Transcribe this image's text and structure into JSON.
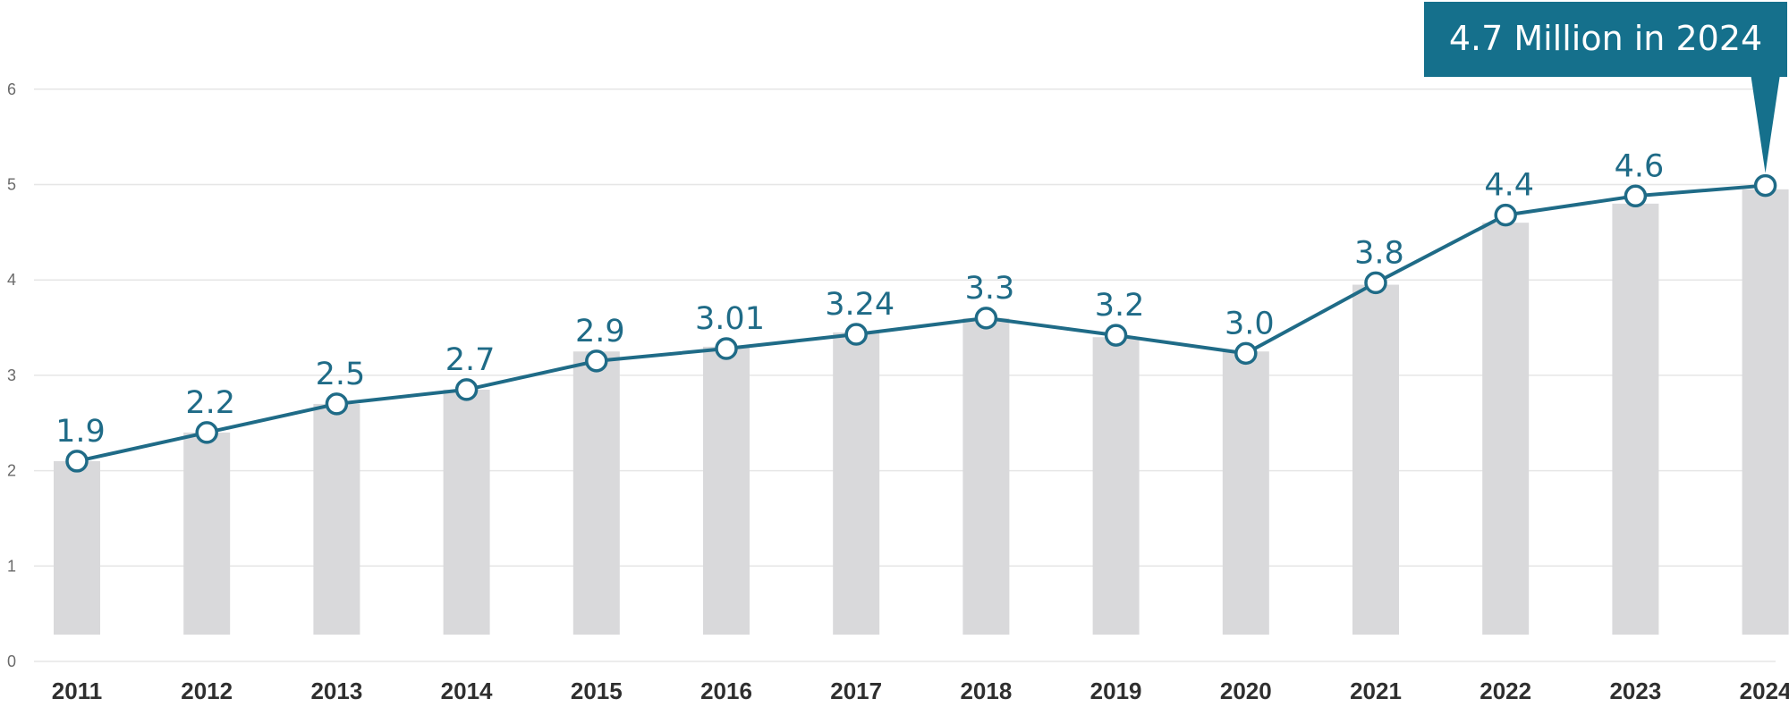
{
  "chart_data": {
    "type": "bar+line",
    "title": "",
    "xlabel": "",
    "ylabel": "",
    "ylim": [
      0,
      6
    ],
    "yticks": [
      0,
      1,
      2,
      3,
      4,
      5,
      6
    ],
    "grid": true,
    "categories": [
      "2011",
      "2012",
      "2013",
      "2014",
      "2015",
      "2016",
      "2017",
      "2018",
      "2019",
      "2020",
      "2021",
      "2022",
      "2023",
      "2024"
    ],
    "bars": {
      "color": "#d9d9db",
      "values": [
        2.1,
        2.4,
        2.7,
        2.85,
        3.25,
        3.3,
        3.45,
        3.6,
        3.4,
        3.25,
        3.95,
        4.6,
        4.8,
        4.95
      ]
    },
    "line": {
      "color": "#1f6b87",
      "values": [
        2.1,
        2.4,
        2.7,
        2.85,
        3.15,
        3.28,
        3.43,
        3.6,
        3.42,
        3.23,
        3.97,
        4.68,
        4.88,
        4.99
      ],
      "labels": [
        "1.9",
        "2.2",
        "2.5",
        "2.7",
        "2.9",
        "3.01",
        "3.24",
        "3.3",
        "3.2",
        "3.0",
        "3.8",
        "4.4",
        "4.6",
        ""
      ]
    },
    "callout": {
      "text": "4.7 Million in 2024",
      "color": "#15708c",
      "target_category": "2024"
    }
  }
}
